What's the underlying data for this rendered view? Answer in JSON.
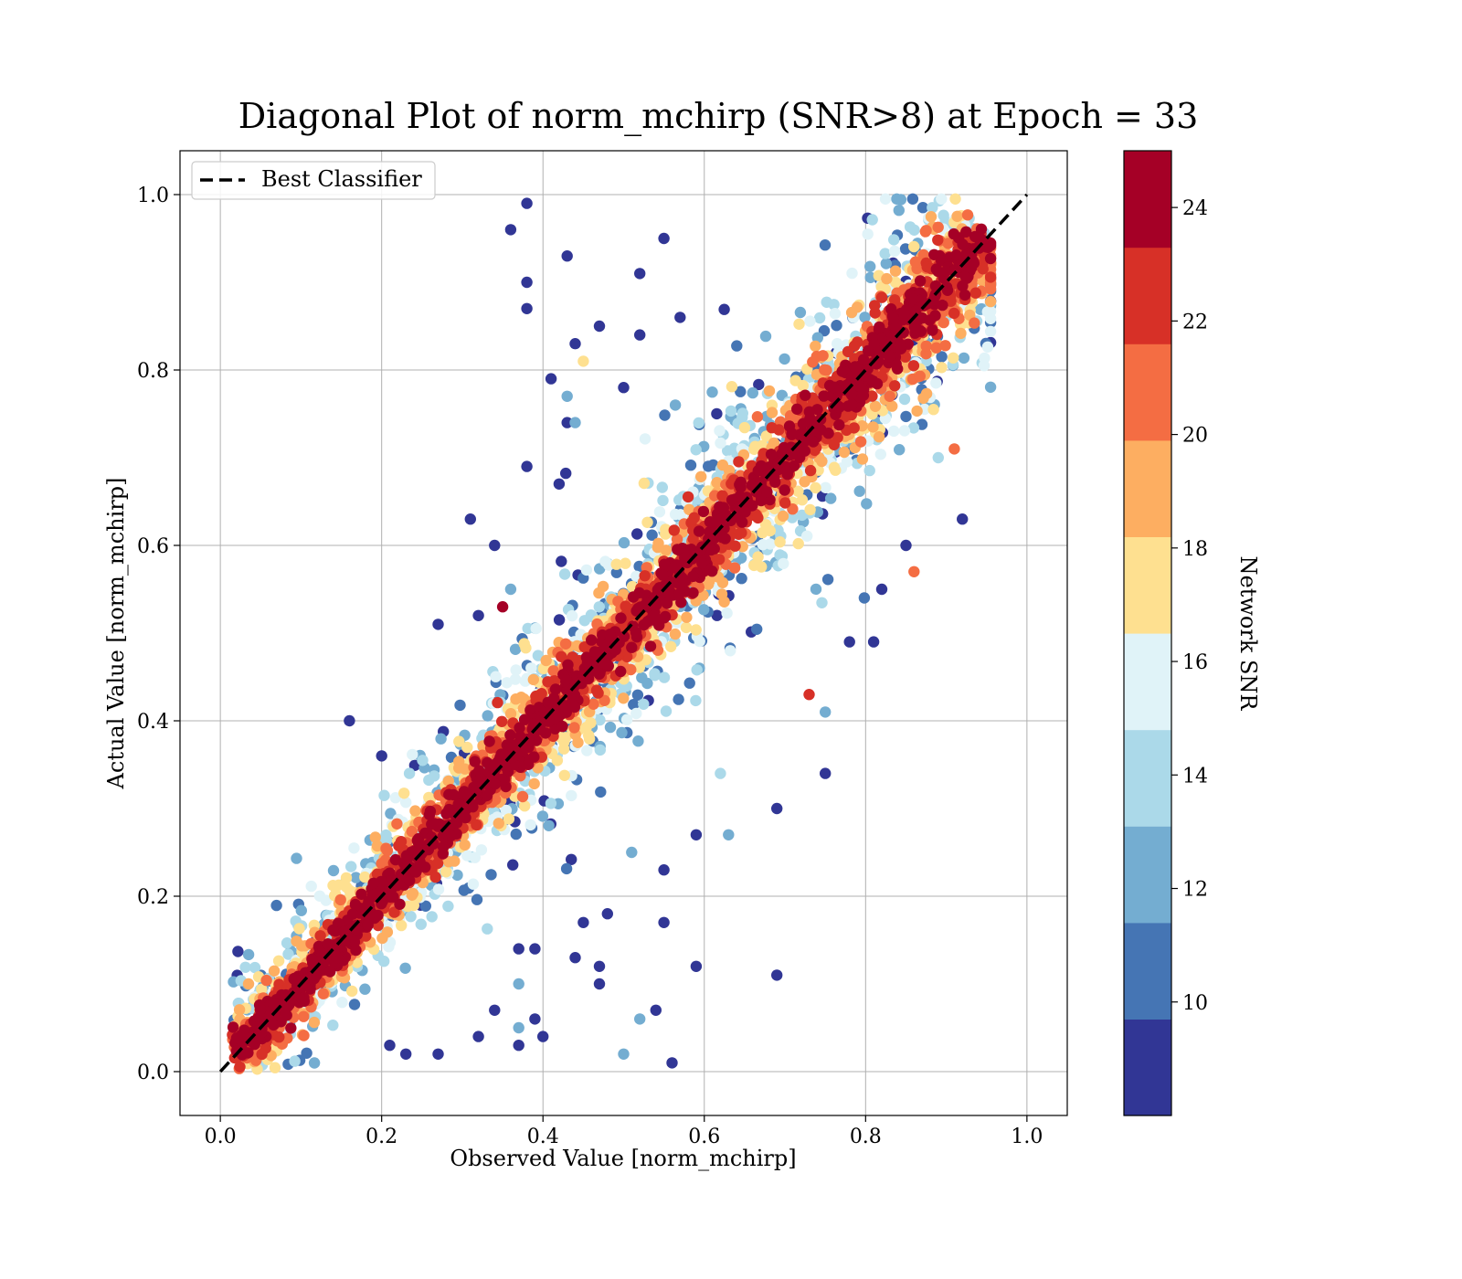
{
  "chart_data": {
    "type": "scatter",
    "title": "Diagonal Plot of norm_mchirp (SNR>8) at Epoch = 33",
    "xlabel": "Observed Value [norm_mchirp]",
    "ylabel": "Actual Value [norm_mchirp]",
    "xlim": [
      -0.05,
      1.05
    ],
    "ylim": [
      -0.05,
      1.05
    ],
    "xticks": [
      "0.0",
      "0.2",
      "0.4",
      "0.6",
      "0.8",
      "1.0"
    ],
    "yticks": [
      "0.0",
      "0.2",
      "0.4",
      "0.6",
      "0.8",
      "1.0"
    ],
    "grid": true,
    "legend": {
      "placement": "upper-left",
      "entries": [
        "Best Classifier"
      ]
    },
    "reference_line": {
      "name": "Best Classifier",
      "x": [
        0,
        1
      ],
      "y": [
        0,
        1
      ],
      "style": "dashed",
      "color": "#000000"
    },
    "colorbar": {
      "label": "Network SNR",
      "range": [
        8,
        25
      ],
      "ticks": [
        "10",
        "12",
        "14",
        "16",
        "18",
        "20",
        "22",
        "24"
      ],
      "colors": [
        "#313695",
        "#4575b4",
        "#74add1",
        "#abd9e9",
        "#e0f3f8",
        "#fee090",
        "#fdae61",
        "#f46d43",
        "#d73027",
        "#a50026"
      ]
    },
    "points": [
      [
        0.38,
        0.99,
        8.5
      ],
      [
        0.36,
        0.96,
        9
      ],
      [
        0.43,
        0.93,
        9
      ],
      [
        0.55,
        0.95,
        9
      ],
      [
        0.38,
        0.9,
        8.5
      ],
      [
        0.38,
        0.87,
        9
      ],
      [
        0.52,
        0.91,
        9
      ],
      [
        0.44,
        0.83,
        9
      ],
      [
        0.47,
        0.85,
        9
      ],
      [
        0.52,
        0.84,
        9
      ],
      [
        0.57,
        0.86,
        9
      ],
      [
        0.41,
        0.79,
        9
      ],
      [
        0.45,
        0.81,
        18
      ],
      [
        0.5,
        0.78,
        9
      ],
      [
        0.43,
        0.74,
        9
      ],
      [
        0.44,
        0.74,
        12
      ],
      [
        0.43,
        0.77,
        12
      ],
      [
        0.38,
        0.69,
        9
      ],
      [
        0.42,
        0.67,
        9
      ],
      [
        0.31,
        0.63,
        9
      ],
      [
        0.34,
        0.6,
        9
      ],
      [
        0.27,
        0.51,
        9
      ],
      [
        0.16,
        0.4,
        9
      ],
      [
        0.2,
        0.36,
        9
      ],
      [
        0.35,
        0.53,
        24
      ],
      [
        0.32,
        0.52,
        9
      ],
      [
        0.36,
        0.55,
        12
      ],
      [
        0.48,
        0.18,
        9
      ],
      [
        0.45,
        0.17,
        9
      ],
      [
        0.55,
        0.17,
        9
      ],
      [
        0.37,
        0.14,
        9
      ],
      [
        0.39,
        0.14,
        9
      ],
      [
        0.44,
        0.13,
        9
      ],
      [
        0.47,
        0.12,
        9
      ],
      [
        0.59,
        0.12,
        9
      ],
      [
        0.69,
        0.11,
        9
      ],
      [
        0.37,
        0.1,
        12
      ],
      [
        0.47,
        0.1,
        9
      ],
      [
        0.34,
        0.07,
        9
      ],
      [
        0.39,
        0.06,
        9
      ],
      [
        0.4,
        0.04,
        9
      ],
      [
        0.37,
        0.05,
        12
      ],
      [
        0.32,
        0.04,
        9
      ],
      [
        0.37,
        0.03,
        9
      ],
      [
        0.54,
        0.07,
        9
      ],
      [
        0.52,
        0.06,
        12
      ],
      [
        0.5,
        0.02,
        12
      ],
      [
        0.56,
        0.01,
        9
      ],
      [
        0.27,
        0.02,
        9
      ],
      [
        0.23,
        0.02,
        9
      ],
      [
        0.21,
        0.03,
        9
      ],
      [
        0.69,
        0.3,
        9
      ],
      [
        0.75,
        0.34,
        9
      ],
      [
        0.63,
        0.27,
        12
      ],
      [
        0.59,
        0.27,
        9
      ],
      [
        0.81,
        0.49,
        9
      ],
      [
        0.78,
        0.49,
        9
      ],
      [
        0.85,
        0.6,
        9
      ],
      [
        0.92,
        0.63,
        9
      ],
      [
        0.82,
        0.55,
        9
      ],
      [
        0.86,
        0.57,
        20
      ],
      [
        0.75,
        0.41,
        12
      ],
      [
        0.73,
        0.43,
        22
      ],
      [
        0.55,
        0.23,
        9
      ],
      [
        0.51,
        0.25,
        12
      ],
      [
        0.91,
        0.71,
        20
      ],
      [
        0.89,
        0.7,
        14
      ],
      [
        0.62,
        0.34,
        14
      ]
    ]
  }
}
